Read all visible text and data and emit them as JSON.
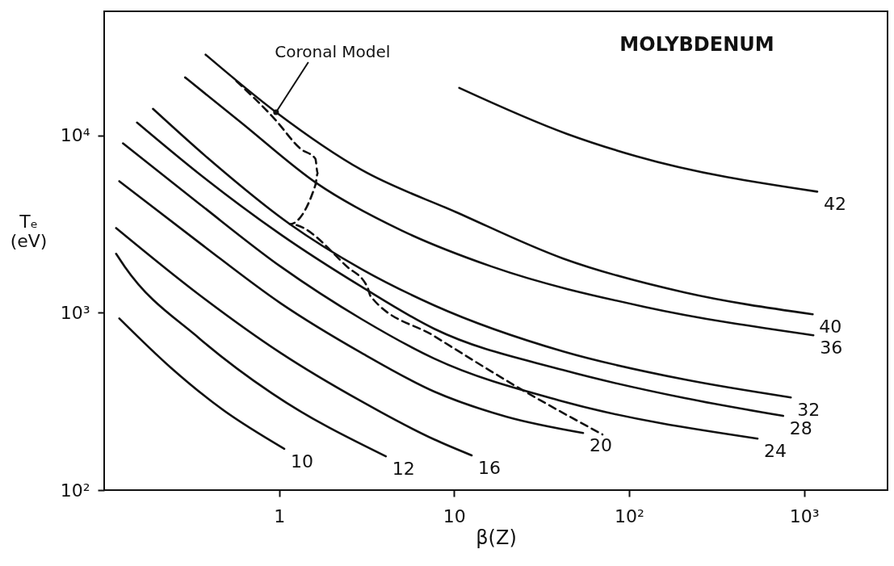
{
  "chart_data": {
    "type": "line",
    "title": "MOLYBDENUM",
    "xlabel": "β(Z)",
    "ylabel": "Tₑ (eV)",
    "log": "xy",
    "grid": false,
    "marker": "none",
    "xlim": [
      0.1,
      3000
    ],
    "xticks": [
      1,
      10,
      {
        "value": 100,
        "label": "10²"
      },
      {
        "value": 1000,
        "label": "10³"
      }
    ],
    "ylim": [
      100,
      50000
    ],
    "yticks": [
      {
        "value": 100,
        "label": "10²"
      },
      {
        "value": 1000,
        "label": "10³"
      },
      {
        "value": 10000,
        "label": "10⁴"
      }
    ],
    "series": [
      {
        "name": "10",
        "color": "#111111",
        "line_style": "solid",
        "x": [
          0.122,
          0.24,
          0.46,
          1.07
        ],
        "values": [
          929,
          491,
          291,
          171
        ]
      },
      {
        "name": "12",
        "color": "#111111",
        "line_style": "solid",
        "x": [
          0.117,
          0.131,
          0.35,
          0.91,
          4.07
        ],
        "values": [
          2150,
          1820,
          716,
          351,
          155
        ]
      },
      {
        "name": "16",
        "color": "#111111",
        "line_style": "solid",
        "x": [
          0.117,
          0.35,
          1.02,
          2.96,
          7.7,
          12.6
        ],
        "values": [
          3000,
          1260,
          593,
          316,
          193,
          157
        ]
      },
      {
        "name": "20",
        "color": "#111111",
        "line_style": "solid",
        "x": [
          0.122,
          0.35,
          1.02,
          2.96,
          7.7,
          20,
          54.6
        ],
        "values": [
          5510,
          2480,
          1130,
          593,
          359,
          259,
          210
        ]
      },
      {
        "name": "24",
        "color": "#111111",
        "line_style": "solid",
        "x": [
          0.128,
          0.35,
          1.02,
          2.96,
          7.7,
          42,
          542
        ],
        "values": [
          9010,
          4110,
          1820,
          920,
          551,
          316,
          195
        ]
      },
      {
        "name": "28",
        "color": "#111111",
        "line_style": "solid",
        "x": [
          0.154,
          0.35,
          1.02,
          2.96,
          7.7,
          42,
          208,
          760
        ],
        "values": [
          11800,
          6050,
          2760,
          1400,
          811,
          475,
          330,
          262
        ]
      },
      {
        "name": "32",
        "color": "#111111",
        "line_style": "solid",
        "x": [
          0.19,
          0.39,
          1.15,
          2.96,
          7.7,
          42,
          208,
          840
        ],
        "values": [
          14100,
          7460,
          3160,
          1760,
          1100,
          605,
          420,
          333
        ]
      },
      {
        "name": "36",
        "color": "#111111",
        "line_style": "solid",
        "x": [
          0.29,
          0.6,
          1.65,
          5,
          16.4,
          122,
          1130
        ],
        "values": [
          21200,
          11900,
          5340,
          2910,
          1820,
          1080,
          746
        ]
      },
      {
        "name": "40",
        "color": "#111111",
        "line_style": "solid",
        "x": [
          0.38,
          0.96,
          2.96,
          10.2,
          42,
          208,
          1120
        ],
        "values": [
          28500,
          13500,
          6380,
          3700,
          2020,
          1300,
          980
        ]
      },
      {
        "name": "42",
        "color": "#111111",
        "line_style": "solid",
        "x": [
          10.7,
          44,
          110,
          1190
        ],
        "values": [
          18500,
          10200,
          7620,
          4810
        ]
      },
      {
        "color": "#111111",
        "line_style": "dashed",
        "x": [
          0.57,
          0.94,
          1.33,
          1.61,
          1.66,
          1.61,
          1.15,
          2.44,
          3.19,
          3.33,
          7.7,
          23.3,
          70.4
        ],
        "values": [
          20200,
          12400,
          8370,
          7380,
          6110,
          5230,
          3160,
          1820,
          1400,
          1240,
          738,
          378,
          206
        ]
      }
    ],
    "annotations": [
      {
        "text": "Coronal Model",
        "x": 0.96,
        "y": 13500
      }
    ]
  }
}
